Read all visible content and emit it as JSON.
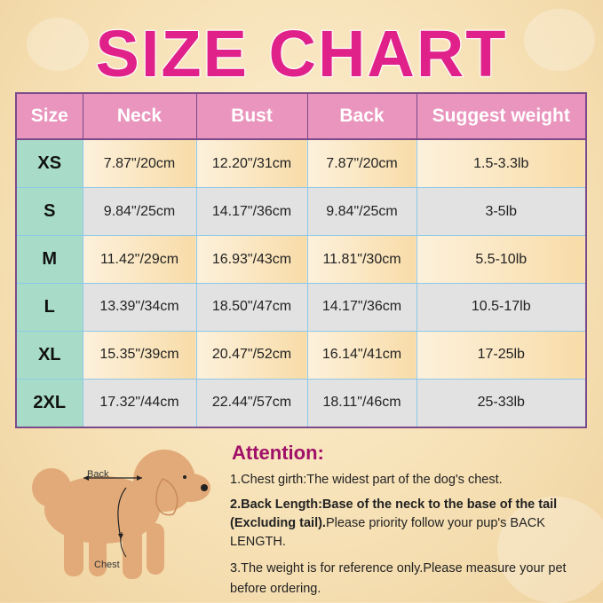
{
  "title": "SIZE CHART",
  "table": {
    "headers": [
      "Size",
      "Neck",
      "Bust",
      "Back",
      "Suggest weight"
    ],
    "rows": [
      [
        "XS",
        "7.87\"/20cm",
        "12.20\"/31cm",
        "7.87\"/20cm",
        "1.5-3.3lb"
      ],
      [
        "S",
        "9.84\"/25cm",
        "14.17\"/36cm",
        "9.84\"/25cm",
        "3-5lb"
      ],
      [
        "M",
        "11.42\"/29cm",
        "16.93\"/43cm",
        "11.81\"/30cm",
        "5.5-10lb"
      ],
      [
        "L",
        "13.39\"/34cm",
        "18.50\"/47cm",
        "14.17\"/36cm",
        "10.5-17lb"
      ],
      [
        "XL",
        "15.35\"/39cm",
        "20.47\"/52cm",
        "16.14\"/41cm",
        "17-25lb"
      ],
      [
        "2XL",
        "17.32\"/44cm",
        "22.44\"/57cm",
        "18.11\"/46cm",
        "25-33lb"
      ]
    ]
  },
  "diagram": {
    "back_label": "Back",
    "chest_label": "Chest"
  },
  "attention": {
    "heading": "Attention:",
    "note1": "1.Chest girth:The widest part of the dog's chest.",
    "note2_bold": "2.Back Length:Base of the neck to the base of the tail (Excluding tail).",
    "note2_rest": "Please priority follow your pup's BACK LENGTH.",
    "note3": "3.The weight is for reference only.Please measure your pet before ordering."
  },
  "colors": {
    "title": "#e0218a",
    "header": "#e995bd",
    "size_col": "#a8dcc8",
    "attention": "#a01068"
  }
}
